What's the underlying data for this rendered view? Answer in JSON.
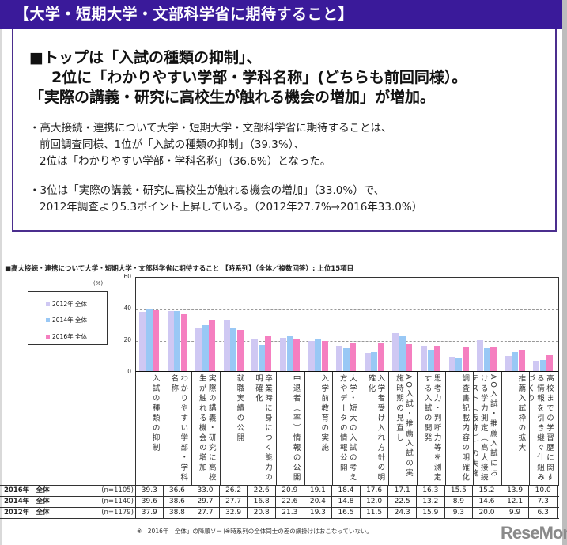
{
  "header": {
    "title": "【大学・短期大学・文部科学省に期待すること】"
  },
  "summary": {
    "headline": [
      "■トップは「入試の種類の抑制」、",
      "2位に「わかりやすい学部・学科名称」(どちらも前回同様）。",
      "「実際の講義・研究に高校生が触れる機会の増加」が増加。"
    ],
    "bullets": [
      [
        "・高大接続・連携について大学・短期大学・文部科学省に期待することは、",
        "前回調査同様、1位が「入試の種類の抑制」（39.3%）、",
        "2位は「わかりやすい学部・学科名称」（36.6%）となった。"
      ],
      [
        "・3位は「実際の講義・研究に高校生が触れる機会の増加」（33.0%）で、",
        "2012年調査より5.3ポイント上昇している。（2012年27.7%→2016年33.0%）"
      ]
    ]
  },
  "chart_data": {
    "type": "bar",
    "title": "■高大接続・連携について大学・短期大学・文部科学省に期待すること 【時系列】（全体／複数回答）: 上位15項目",
    "ylabel": "(%)",
    "ylim": [
      0,
      60
    ],
    "yticks": [
      "60",
      "40",
      "20",
      "0"
    ],
    "grid": true,
    "legend_position": "left",
    "categories": [
      "入試の種類の抑制",
      "わかりやすい学部・学科名称",
      "実際の講義・研究に高校生が触れる機会の増加",
      "就職実績の公開",
      "卒業時に身につく能力の明確化",
      "中退者（率）情報の公開",
      "入学前教育の実施",
      "大学・短大の入試の考え方やデータの情報公開",
      "入学者受け入れ方針の明確化",
      "AO入試・推薦入試の実施時期の見直し",
      "思考力・判断力等を測定する入試の開発",
      "調査書記載内容の明確化",
      "AO入試・推薦入試における学力測定（高大接続テスト（仮称））の実施",
      "推薦入試枠の拡大",
      "高校までの学習歴に関する情報を引き継ぐ仕組みづくり"
    ],
    "series": [
      {
        "name": "2012年 全体",
        "n": "(n=1179)",
        "color": "#cfc8f3",
        "values": [
          37.9,
          38.8,
          27.7,
          32.9,
          20.8,
          21.3,
          19.3,
          16.5,
          11.5,
          24.3,
          15.9,
          9.3,
          20.0,
          9.9,
          6.3
        ]
      },
      {
        "name": "2014年 全体",
        "n": "(n=1140)",
        "color": "#99c8f5",
        "values": [
          39.6,
          38.6,
          29.7,
          27.7,
          16.8,
          22.6,
          20.4,
          14.8,
          12.0,
          22.5,
          13.2,
          8.9,
          14.6,
          12.1,
          7.3
        ]
      },
      {
        "name": "2016年 全体",
        "n": "(n=1105)",
        "color": "#f57fc0",
        "values": [
          39.3,
          36.6,
          33.0,
          26.2,
          22.6,
          20.9,
          19.1,
          18.4,
          17.6,
          17.1,
          16.3,
          15.5,
          15.2,
          13.9,
          10.0
        ]
      }
    ],
    "table_rows": [
      {
        "label": "2016年　全体",
        "n": "(n=1105)",
        "values": [
          "39.3",
          "36.6",
          "33.0",
          "26.2",
          "22.6",
          "20.9",
          "19.1",
          "18.4",
          "17.6",
          "17.1",
          "16.3",
          "15.5",
          "15.2",
          "13.9",
          "10.0"
        ]
      },
      {
        "label": "2014年　全体",
        "n": "(n=1140)",
        "values": [
          "39.6",
          "38.6",
          "29.7",
          "27.7",
          "16.8",
          "22.6",
          "20.4",
          "14.8",
          "12.0",
          "22.5",
          "13.2",
          "8.9",
          "14.6",
          "12.1",
          "7.3"
        ]
      },
      {
        "label": "2012年　全体",
        "n": "(n=1179)",
        "values": [
          "37.9",
          "38.8",
          "27.7",
          "32.9",
          "20.8",
          "21.3",
          "19.3",
          "16.5",
          "11.5",
          "24.3",
          "15.9",
          "9.3",
          "20.0",
          "9.9",
          "6.3"
        ]
      }
    ],
    "notes": [
      "※「2016年　全体」の降順ソート",
      "※時系列の全体同士の差の網掛けはおこなっていない。"
    ]
  },
  "watermark": "ReseMom"
}
